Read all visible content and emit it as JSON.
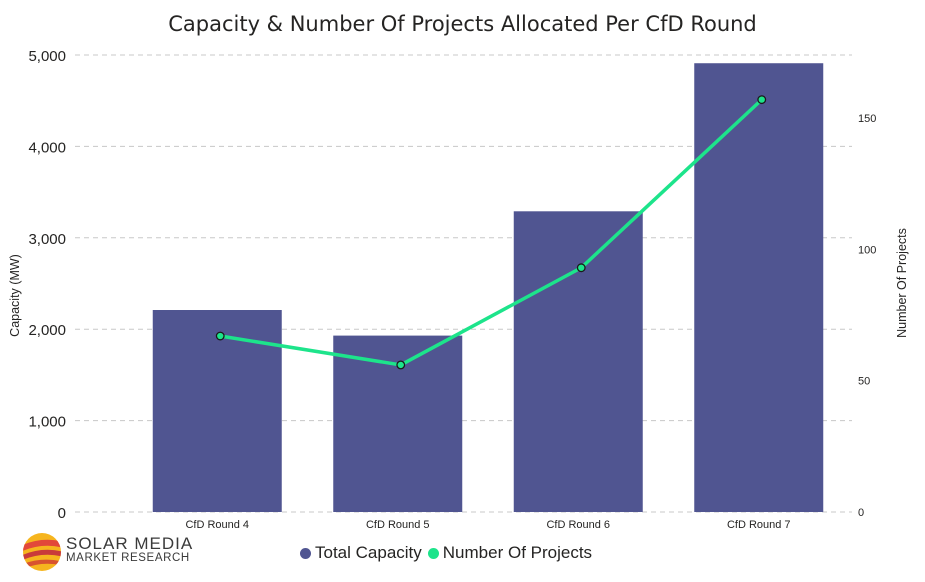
{
  "chart_data": {
    "type": "bar",
    "title": "Capacity & Number Of Projects Allocated Per CfD Round",
    "categories": [
      "CfD Round 4",
      "CfD Round 5",
      "CfD Round 6",
      "CfD Round 7"
    ],
    "series": [
      {
        "name": "Total Capacity",
        "type": "bar",
        "axis": "left",
        "values": [
          2210,
          1930,
          3290,
          4910
        ],
        "color": "#505591"
      },
      {
        "name": "Number Of Projects",
        "type": "line",
        "axis": "right",
        "values": [
          67,
          56,
          93,
          157
        ],
        "color": "#1de48b"
      }
    ],
    "ylabel": "Capacity (MW)",
    "y2label": "Number Of Projects",
    "ylim": [
      0,
      5000
    ],
    "yticks": [
      0,
      1000,
      2000,
      3000,
      4000,
      5000
    ],
    "ytick_labels": [
      "0",
      "1,000",
      "2,000",
      "3,000",
      "4,000",
      "5,000"
    ],
    "y2lim": [
      0,
      174
    ],
    "y2ticks": [
      0,
      50,
      100,
      150
    ],
    "y2tick_labels": [
      "0",
      "50",
      "100",
      "150"
    ],
    "grid": true,
    "legend": "bottom"
  },
  "logo": {
    "line1": "SOLAR MEDIA",
    "line2": "MARKET RESEARCH"
  }
}
